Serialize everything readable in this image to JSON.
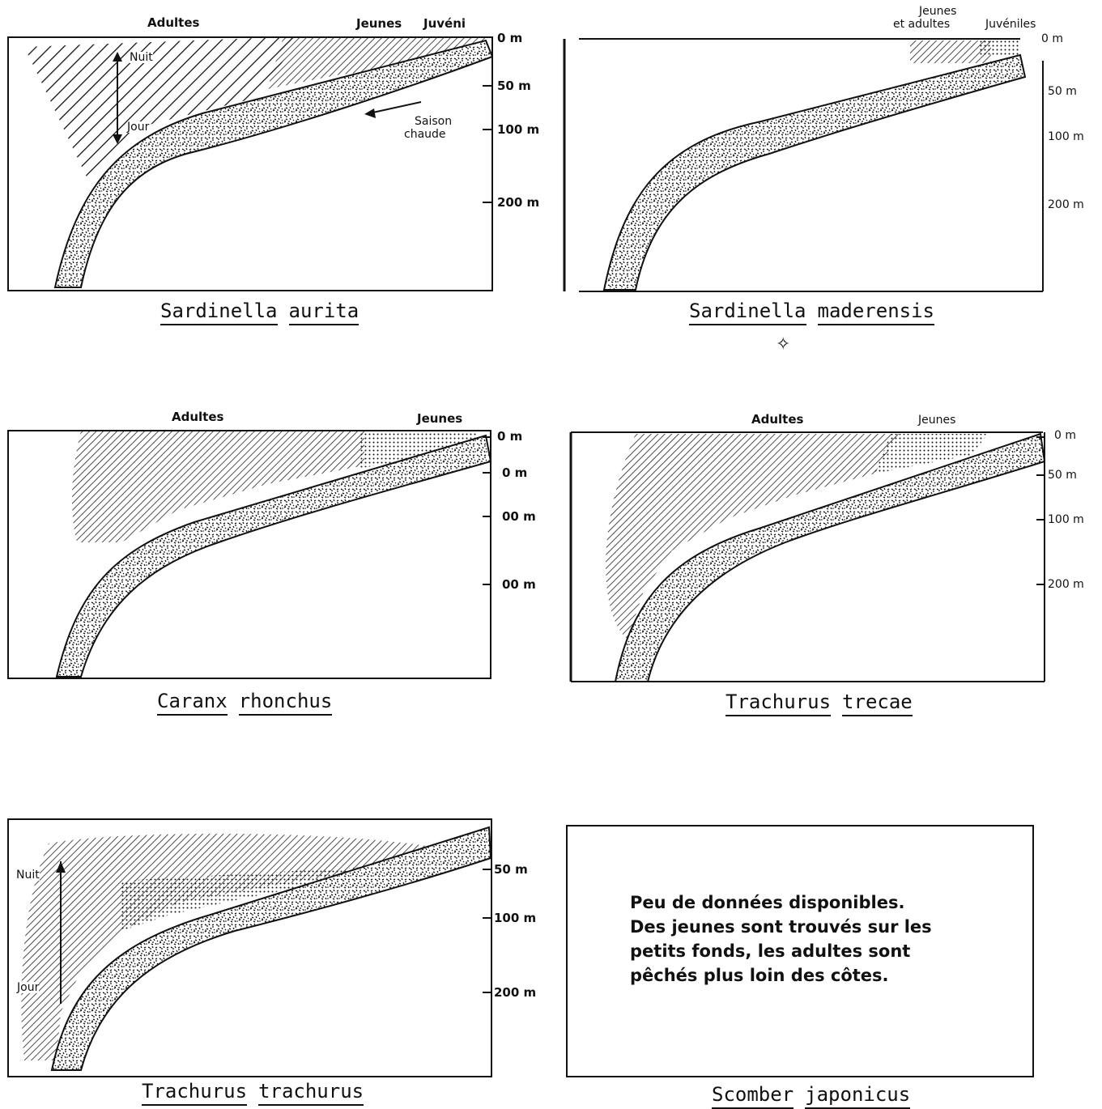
{
  "panels": {
    "p1": {
      "species": [
        "Sardinella",
        "aurita"
      ],
      "top_labels": [
        "Adultes",
        "Jeunes",
        "Juvéni"
      ],
      "depths": [
        "0 m",
        "50 m",
        "100 m",
        "200 m"
      ],
      "annotations": {
        "night": "Nuit",
        "day": "Jour",
        "season_1": "Saison",
        "season_2": "chaude"
      }
    },
    "p2": {
      "species": [
        "Sardinella",
        "maderensis"
      ],
      "top_labels": [
        "Jeunes",
        "et adultes",
        "Juvéniles"
      ],
      "depths": [
        "0 m",
        "50 m",
        "100 m",
        "200 m"
      ]
    },
    "p3": {
      "species": [
        "Caranx",
        "rhonchus"
      ],
      "top_labels": [
        "Adultes",
        "Jeunes"
      ],
      "depths": [
        "0 m",
        "0 m",
        "00 m",
        "00 m"
      ]
    },
    "p4": {
      "species": [
        "Trachurus",
        "trecae"
      ],
      "top_labels": [
        "Adultes",
        "Jeunes"
      ],
      "depths": [
        "0 m",
        "50 m",
        "100 m",
        "200 m"
      ]
    },
    "p5": {
      "species": [
        "Trachurus",
        "trachurus"
      ],
      "depths": [
        "50 m",
        "100 m",
        "200 m"
      ],
      "annotations": {
        "night": "Nuit",
        "day": "Jour"
      }
    },
    "p6": {
      "species": [
        "Scomber",
        "japonicus"
      ],
      "note": [
        "Peu de données disponibles.",
        "Des jeunes sont trouvés sur les",
        "petits fonds, les adultes sont",
        "pêchés plus loin des côtes."
      ]
    }
  }
}
